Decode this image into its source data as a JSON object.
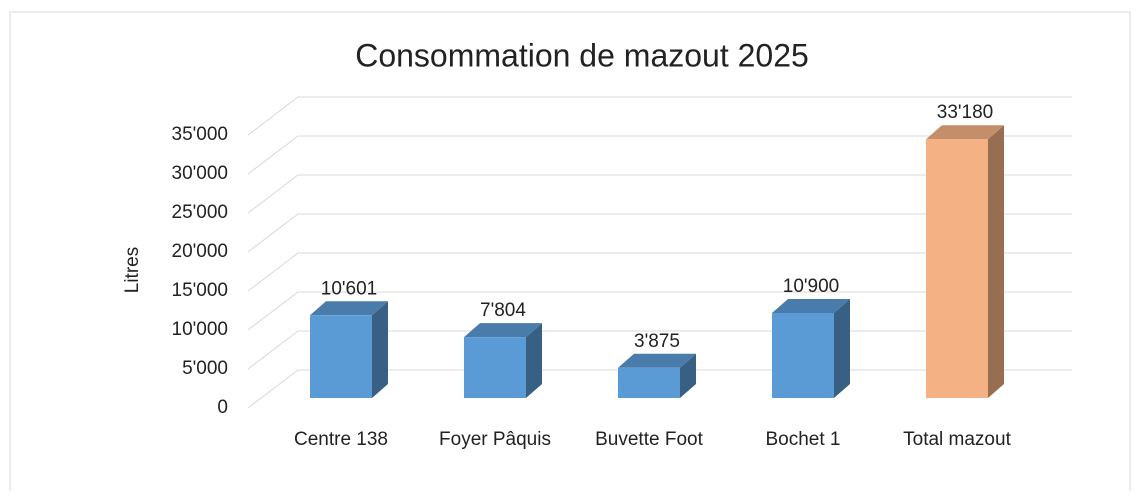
{
  "chart_data": {
    "type": "bar3d",
    "title": "Consommation de mazout 2025",
    "y_label": "Litres",
    "categories": [
      "Centre 138",
      "Foyer Pâquis",
      "Buvette Foot",
      "Bochet 1",
      "Total mazout"
    ],
    "values": [
      10601,
      7804,
      3875,
      10900,
      33180
    ],
    "value_labels": [
      "10'601",
      "7'804",
      "3'875",
      "10'900",
      "33'180"
    ],
    "colors": [
      "#5b9bd5",
      "#5b9bd5",
      "#5b9bd5",
      "#5b9bd5",
      "#f4b183"
    ],
    "ylim": [
      0,
      35000
    ],
    "yticks": [
      0,
      {
        "value": 5000,
        "label": "5'000"
      },
      {
        "value": 10000,
        "label": "10'000"
      },
      {
        "value": 15000,
        "label": "15'000"
      },
      {
        "value": 20000,
        "label": "20'000"
      },
      {
        "value": 25000,
        "label": "25'000"
      },
      {
        "value": 30000,
        "label": "30'000"
      },
      {
        "value": 35000,
        "label": "35'000"
      }
    ],
    "grid": true
  }
}
